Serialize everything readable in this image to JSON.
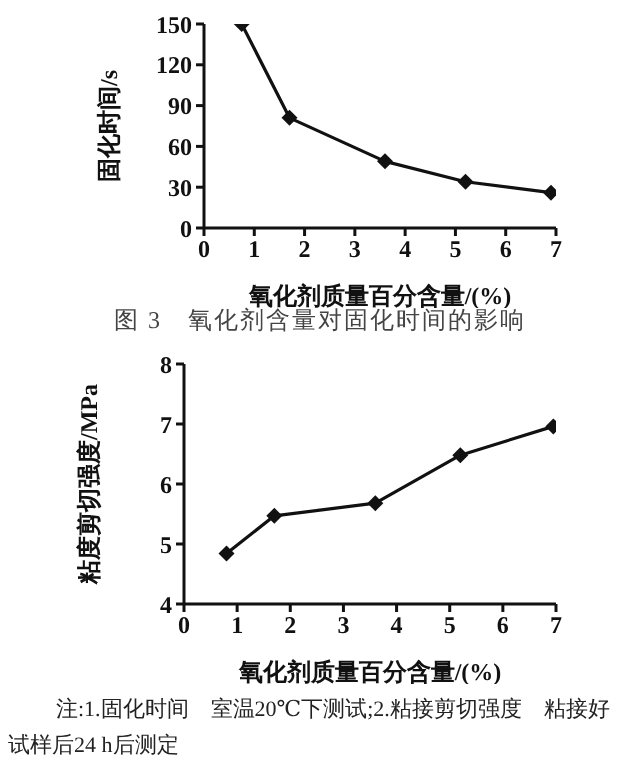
{
  "chart_data": [
    {
      "type": "line",
      "title": "图 3　氧化剂含量对固化时间的影响",
      "xlabel": "氧化剂质量百分含量/(%)",
      "ylabel": "固化时间/s",
      "x": [
        0.75,
        1.7,
        3.6,
        5.2,
        6.9
      ],
      "values": [
        150,
        81,
        49,
        34,
        26
      ],
      "color": "#111111",
      "xlim": [
        0,
        7
      ],
      "xticks": [
        0,
        1,
        2,
        3,
        4,
        5,
        6,
        7
      ],
      "ylim": [
        0,
        150
      ],
      "yticks": [
        0,
        30,
        60,
        90,
        120,
        150
      ],
      "grid": false,
      "legend": false,
      "marker": "diamond",
      "line_style": "solid"
    },
    {
      "type": "line",
      "xlabel": "氧化剂质量百分含量/(%)",
      "ylabel": "粘度剪切强度/MPa",
      "x": [
        0.8,
        1.7,
        3.6,
        5.2,
        6.95
      ],
      "values": [
        4.84,
        5.47,
        5.68,
        6.48,
        6.96
      ],
      "color": "#111111",
      "xlim": [
        0,
        7
      ],
      "xticks": [
        0,
        1,
        2,
        3,
        4,
        5,
        6,
        7
      ],
      "ylim": [
        4,
        8
      ],
      "yticks": [
        4,
        5,
        6,
        7,
        8
      ],
      "grid": false,
      "legend": false,
      "marker": "diamond",
      "line_style": "solid",
      "annotations": [
        "注:1.固化时间　室温20℃下测试;2.粘接剪切强度　粘接好试样后24 h后测定"
      ]
    }
  ]
}
